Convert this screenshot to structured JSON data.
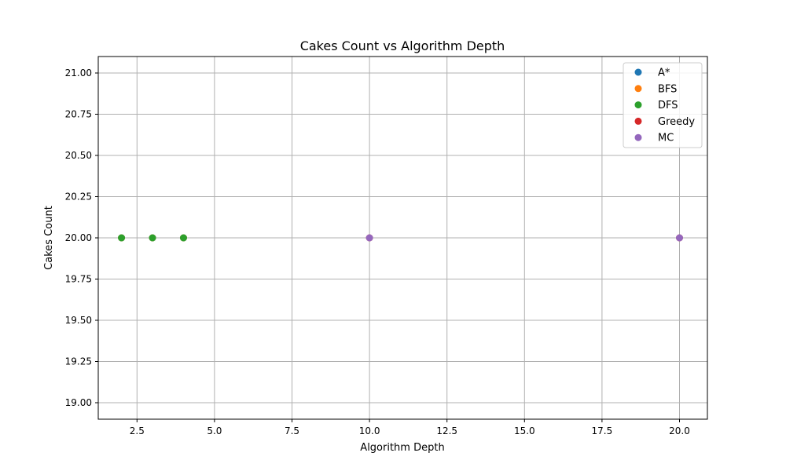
{
  "chart_data": {
    "type": "scatter",
    "title": "Cakes Count vs Algorithm Depth",
    "xlabel": "Algorithm Depth",
    "ylabel": "Cakes Count",
    "xlim": [
      1.25,
      20.9
    ],
    "ylim": [
      18.9,
      21.1
    ],
    "xticks": [
      2.5,
      5.0,
      7.5,
      10.0,
      12.5,
      15.0,
      17.5,
      20.0
    ],
    "xtick_labels": [
      "2.5",
      "5.0",
      "7.5",
      "10.0",
      "12.5",
      "15.0",
      "17.5",
      "20.0"
    ],
    "yticks": [
      19.0,
      19.25,
      19.5,
      19.75,
      20.0,
      20.25,
      20.5,
      20.75,
      21.0
    ],
    "ytick_labels": [
      "19.00",
      "19.25",
      "19.50",
      "19.75",
      "20.00",
      "20.25",
      "20.50",
      "20.75",
      "21.00"
    ],
    "grid": true,
    "legend_position": "top-right",
    "series": [
      {
        "name": "A*",
        "color": "#1f77b4",
        "points": [
          [
            2,
            20
          ],
          [
            3,
            20
          ],
          [
            4,
            20
          ]
        ]
      },
      {
        "name": "BFS",
        "color": "#ff7f0e",
        "points": [
          [
            2,
            20
          ],
          [
            3,
            20
          ],
          [
            4,
            20
          ]
        ]
      },
      {
        "name": "DFS",
        "color": "#2ca02c",
        "points": [
          [
            2,
            20
          ],
          [
            3,
            20
          ],
          [
            4,
            20
          ]
        ]
      },
      {
        "name": "Greedy",
        "color": "#d62728",
        "points": [
          [
            10,
            20
          ],
          [
            20,
            20
          ]
        ]
      },
      {
        "name": "MC",
        "color": "#9467bd",
        "points": [
          [
            10,
            20
          ],
          [
            20,
            20
          ]
        ]
      }
    ]
  }
}
